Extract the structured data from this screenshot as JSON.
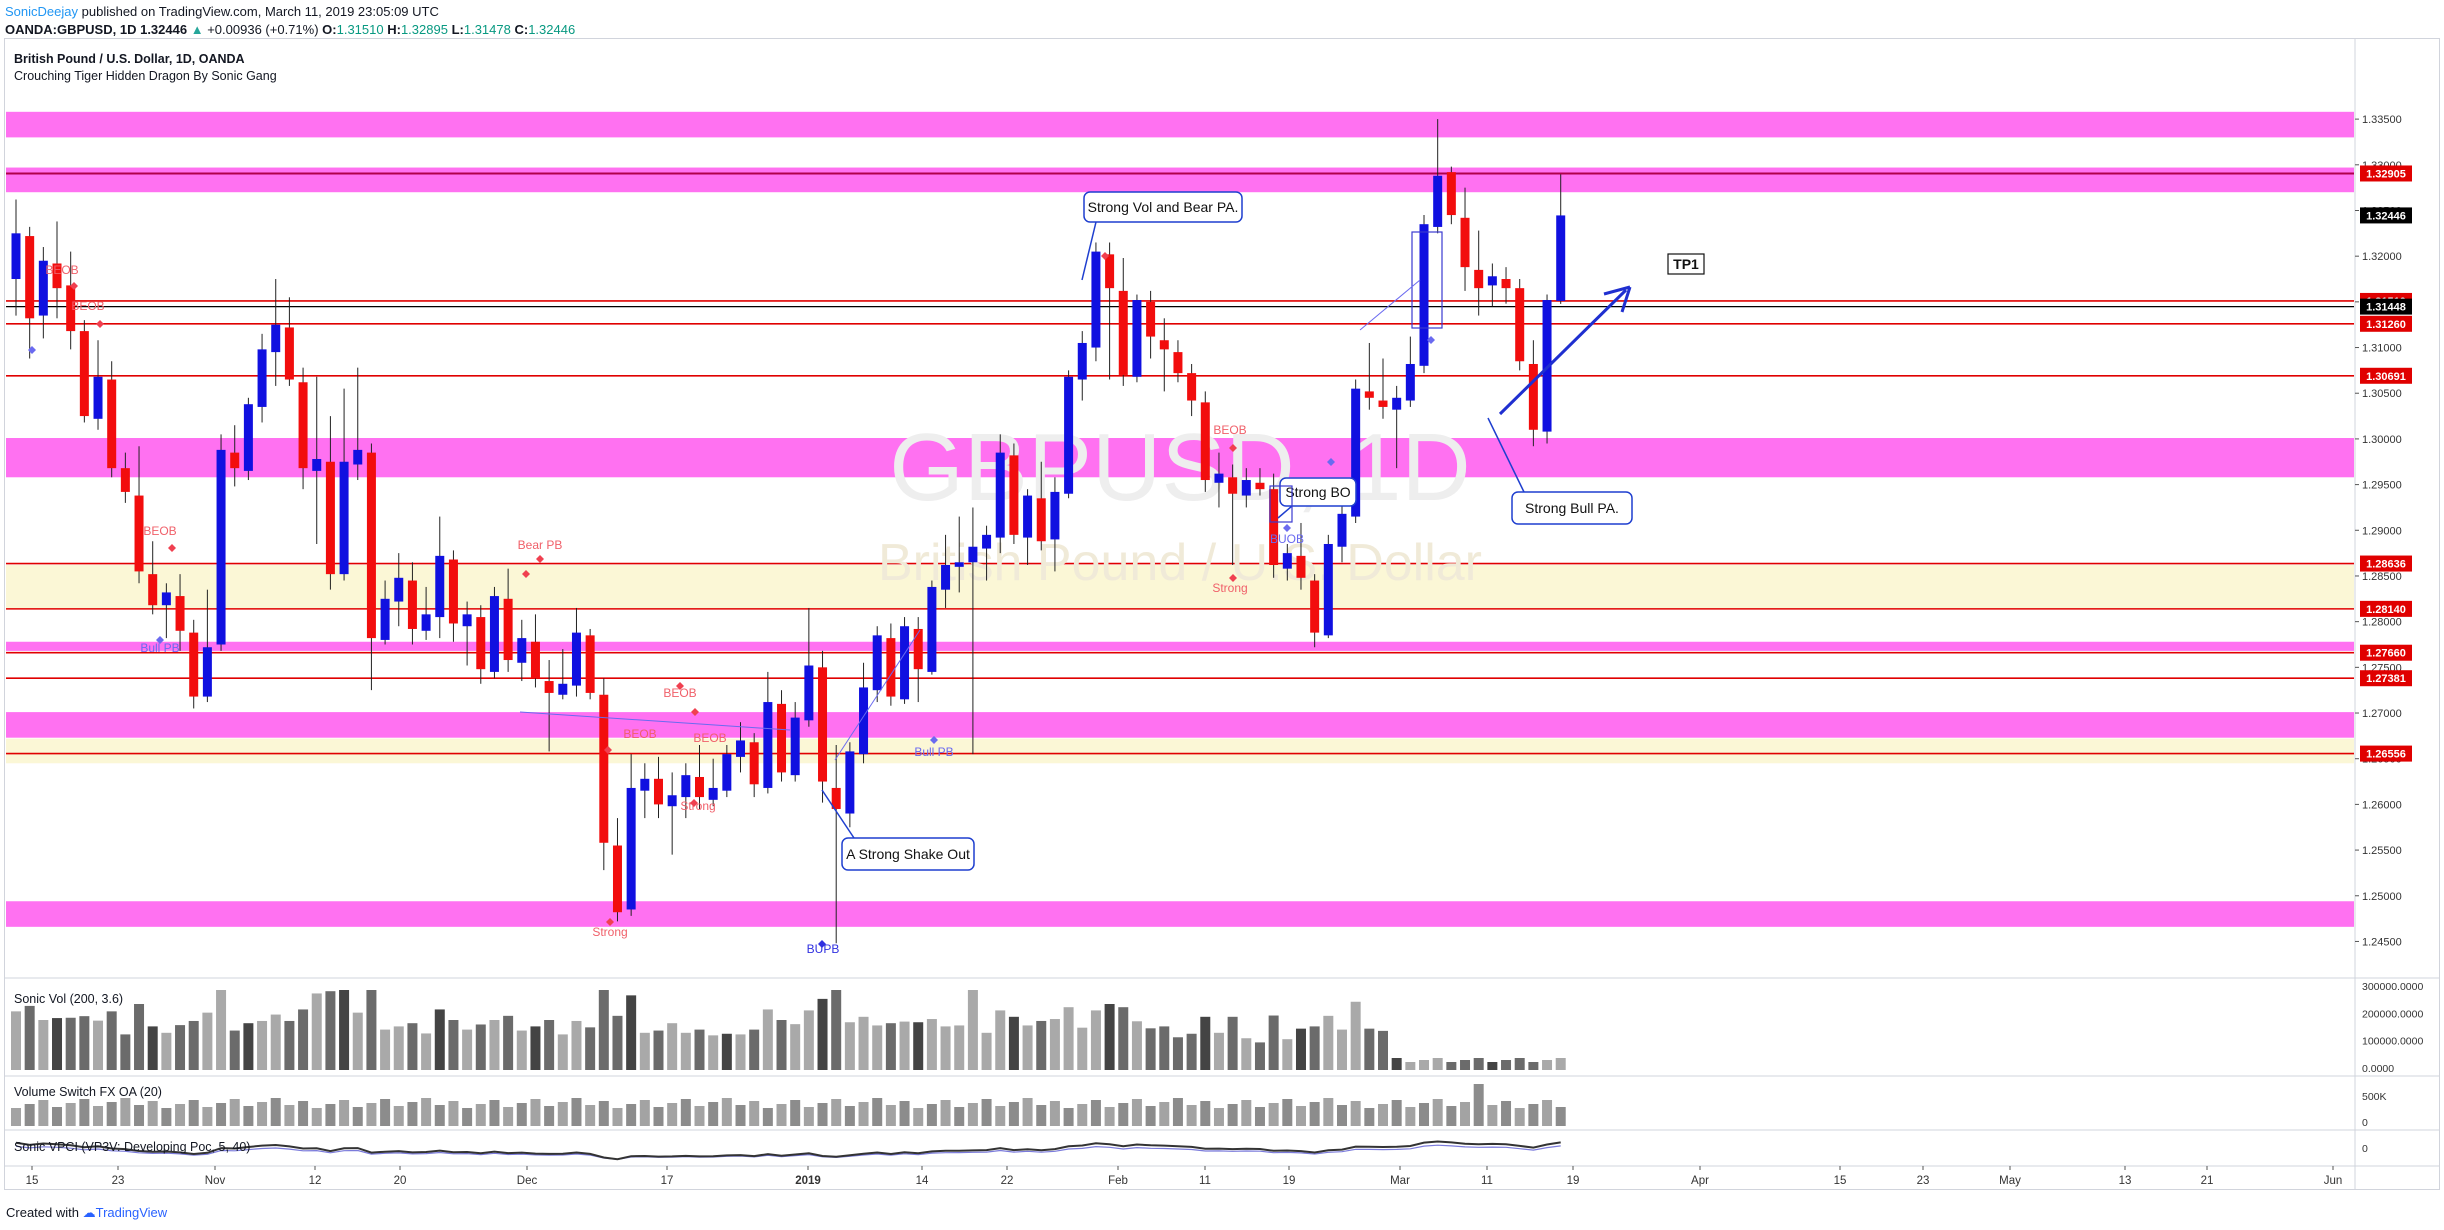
{
  "header": {
    "user": "SonicDeejay",
    "published": "published on TradingView.com, March 11, 2019 23:05:09 UTC",
    "symbol": "OANDA:GBPUSD, 1D",
    "last": "1.32446",
    "arrow": "▲",
    "change": "+0.00936 (+0.71%)",
    "ohlc": [
      {
        "label": "O:",
        "value": "1.31510"
      },
      {
        "label": "H:",
        "value": "1.32895"
      },
      {
        "label": "L:",
        "value": "1.31478"
      },
      {
        "label": "C:",
        "value": "1.32446"
      }
    ]
  },
  "chart_title": "British Pound / U.S. Dollar, 1D, OANDA",
  "indicator_name": "Crouching Tiger Hidden Dragon By Sonic Gang",
  "watermark": {
    "symbol": "GBPUSD, 1D",
    "name": "British Pound / U.S. Dollar"
  },
  "panes": {
    "volume_title": "Sonic Vol (200, 3.6)",
    "volume_ticks": [
      "300000.0000",
      "200000.0000",
      "100000.0000",
      "0.0000"
    ],
    "switch_title": "Volume Switch FX OA (20)",
    "switch_ticks": [
      "500K",
      "0"
    ],
    "vpci_title": "Sonic VPCI (VP3V: Developing Poc, 5, 40)",
    "vpci_ticks": [
      "0"
    ]
  },
  "footer": {
    "created_with": "Created with",
    "brand": "TradingView"
  },
  "colors": {
    "bull": "#1010e0",
    "bear": "#f20d0d",
    "zone_magenta": "#ff69f0",
    "zone_yellow": "#fbf7d6",
    "level_red": "#e00000"
  },
  "chart_data": {
    "type": "candlestick",
    "price_axis": {
      "min": 1.241,
      "max": 1.3395,
      "ticks": [
        "1.33500",
        "1.33000",
        "1.32500",
        "1.32000",
        "1.31500",
        "1.31000",
        "1.30500",
        "1.30000",
        "1.29500",
        "1.29000",
        "1.28500",
        "1.28000",
        "1.27500",
        "1.27000",
        "1.26500",
        "1.26000",
        "1.25500",
        "1.25000",
        "1.24500"
      ]
    },
    "time_axis": [
      "15",
      "23",
      "Nov",
      "12",
      "20",
      "Dec",
      "17",
      "2019",
      "14",
      "22",
      "Feb",
      "11",
      "19",
      "Mar",
      "11",
      "19",
      "Apr",
      "15",
      "23",
      "May",
      "13",
      "21",
      "Jun"
    ],
    "price_labels": [
      {
        "text": "1.32905",
        "color": "#e00000",
        "price": 1.32905
      },
      {
        "text": "1.32446",
        "color": "#000000",
        "price": 1.32446
      },
      {
        "text": "1.31510",
        "color": "#e00000",
        "price": 1.3151
      },
      {
        "text": "1.31448",
        "color": "#000000",
        "price": 1.31448
      },
      {
        "text": "1.31260",
        "color": "#e00000",
        "price": 1.3126
      },
      {
        "text": "1.30691",
        "color": "#e00000",
        "price": 1.30691
      },
      {
        "text": "1.28636",
        "color": "#e00000",
        "price": 1.28636
      },
      {
        "text": "1.28140",
        "color": "#e00000",
        "price": 1.2814
      },
      {
        "text": "1.27660",
        "color": "#e00000",
        "price": 1.2766
      },
      {
        "text": "1.27381",
        "color": "#e00000",
        "price": 1.27381
      },
      {
        "text": "1.26556",
        "color": "#e00000",
        "price": 1.26556
      }
    ],
    "zones": [
      {
        "type": "magenta",
        "from": 1.333,
        "to": 1.3358
      },
      {
        "type": "magenta",
        "from": 1.327,
        "to": 1.3297
      },
      {
        "type": "magenta",
        "from": 1.2958,
        "to": 1.3001
      },
      {
        "type": "yellow",
        "from": 1.2814,
        "to": 1.2862
      },
      {
        "type": "magenta",
        "from": 1.2768,
        "to": 1.2778
      },
      {
        "type": "magenta",
        "from": 1.2673,
        "to": 1.2701
      },
      {
        "type": "yellow",
        "from": 1.2645,
        "to": 1.2672
      },
      {
        "type": "magenta",
        "from": 1.2466,
        "to": 1.2494
      }
    ],
    "levels": [
      1.32905,
      1.3151,
      1.3126,
      1.30691,
      1.28636,
      1.2814,
      1.2766,
      1.27381,
      1.26556
    ],
    "candles": [
      {
        "o": 1.3175,
        "h": 1.3262,
        "l": 1.3135,
        "c": 1.3225
      },
      {
        "o": 1.3222,
        "h": 1.3232,
        "l": 1.3088,
        "c": 1.3132
      },
      {
        "o": 1.3135,
        "h": 1.321,
        "l": 1.311,
        "c": 1.3195
      },
      {
        "o": 1.3192,
        "h": 1.3238,
        "l": 1.3132,
        "c": 1.3165
      },
      {
        "o": 1.3168,
        "h": 1.3205,
        "l": 1.3098,
        "c": 1.3118
      },
      {
        "o": 1.3118,
        "h": 1.313,
        "l": 1.3018,
        "c": 1.3025
      },
      {
        "o": 1.3022,
        "h": 1.3108,
        "l": 1.301,
        "c": 1.3068
      },
      {
        "o": 1.3065,
        "h": 1.3085,
        "l": 1.2958,
        "c": 1.2968
      },
      {
        "o": 1.2968,
        "h": 1.2985,
        "l": 1.293,
        "c": 1.2942
      },
      {
        "o": 1.2938,
        "h": 1.2992,
        "l": 1.2842,
        "c": 1.2855
      },
      {
        "o": 1.2852,
        "h": 1.2888,
        "l": 1.2808,
        "c": 1.2818
      },
      {
        "o": 1.2818,
        "h": 1.2842,
        "l": 1.2782,
        "c": 1.2832
      },
      {
        "o": 1.2828,
        "h": 1.2852,
        "l": 1.2768,
        "c": 1.279
      },
      {
        "o": 1.2788,
        "h": 1.2802,
        "l": 1.2705,
        "c": 1.2718
      },
      {
        "o": 1.2718,
        "h": 1.2835,
        "l": 1.2712,
        "c": 1.2772
      },
      {
        "o": 1.2775,
        "h": 1.3005,
        "l": 1.2768,
        "c": 1.2988
      },
      {
        "o": 1.2985,
        "h": 1.3015,
        "l": 1.2948,
        "c": 1.2968
      },
      {
        "o": 1.2965,
        "h": 1.3045,
        "l": 1.2955,
        "c": 1.3038
      },
      {
        "o": 1.3035,
        "h": 1.3115,
        "l": 1.3018,
        "c": 1.3098
      },
      {
        "o": 1.3095,
        "h": 1.3175,
        "l": 1.3058,
        "c": 1.3125
      },
      {
        "o": 1.3122,
        "h": 1.3155,
        "l": 1.3058,
        "c": 1.3065
      },
      {
        "o": 1.3062,
        "h": 1.3078,
        "l": 1.2945,
        "c": 1.2968
      },
      {
        "o": 1.2965,
        "h": 1.3068,
        "l": 1.2885,
        "c": 1.2978
      },
      {
        "o": 1.2975,
        "h": 1.3025,
        "l": 1.2835,
        "c": 1.2852
      },
      {
        "o": 1.2852,
        "h": 1.3055,
        "l": 1.2845,
        "c": 1.2975
      },
      {
        "o": 1.2972,
        "h": 1.3078,
        "l": 1.2955,
        "c": 1.2988
      },
      {
        "o": 1.2985,
        "h": 1.2995,
        "l": 1.2725,
        "c": 1.2782
      },
      {
        "o": 1.278,
        "h": 1.2845,
        "l": 1.2775,
        "c": 1.2825
      },
      {
        "o": 1.2822,
        "h": 1.2875,
        "l": 1.2795,
        "c": 1.2848
      },
      {
        "o": 1.2845,
        "h": 1.2865,
        "l": 1.2775,
        "c": 1.2792
      },
      {
        "o": 1.279,
        "h": 1.2838,
        "l": 1.278,
        "c": 1.2808
      },
      {
        "o": 1.2805,
        "h": 1.2915,
        "l": 1.2782,
        "c": 1.2872
      },
      {
        "o": 1.2868,
        "h": 1.2878,
        "l": 1.2778,
        "c": 1.2798
      },
      {
        "o": 1.2795,
        "h": 1.2822,
        "l": 1.2752,
        "c": 1.2808
      },
      {
        "o": 1.2805,
        "h": 1.2818,
        "l": 1.2732,
        "c": 1.2748
      },
      {
        "o": 1.2745,
        "h": 1.2838,
        "l": 1.2738,
        "c": 1.2828
      },
      {
        "o": 1.2825,
        "h": 1.2858,
        "l": 1.2745,
        "c": 1.2758
      },
      {
        "o": 1.2755,
        "h": 1.2802,
        "l": 1.2735,
        "c": 1.2782
      },
      {
        "o": 1.2778,
        "h": 1.2808,
        "l": 1.2728,
        "c": 1.2738
      },
      {
        "o": 1.2735,
        "h": 1.2758,
        "l": 1.2658,
        "c": 1.2722
      },
      {
        "o": 1.272,
        "h": 1.277,
        "l": 1.2715,
        "c": 1.2732
      },
      {
        "o": 1.273,
        "h": 1.2815,
        "l": 1.2718,
        "c": 1.2788
      },
      {
        "o": 1.2785,
        "h": 1.2792,
        "l": 1.2715,
        "c": 1.2722
      },
      {
        "o": 1.272,
        "h": 1.2738,
        "l": 1.2528,
        "c": 1.2558
      },
      {
        "o": 1.2555,
        "h": 1.2585,
        "l": 1.2472,
        "c": 1.2482
      },
      {
        "o": 1.2485,
        "h": 1.2655,
        "l": 1.2478,
        "c": 1.2618
      },
      {
        "o": 1.2615,
        "h": 1.2645,
        "l": 1.2585,
        "c": 1.2628
      },
      {
        "o": 1.2628,
        "h": 1.2652,
        "l": 1.2585,
        "c": 1.26
      },
      {
        "o": 1.2598,
        "h": 1.2635,
        "l": 1.2545,
        "c": 1.261
      },
      {
        "o": 1.2608,
        "h": 1.2645,
        "l": 1.2585,
        "c": 1.2632
      },
      {
        "o": 1.263,
        "h": 1.2665,
        "l": 1.2595,
        "c": 1.2608
      },
      {
        "o": 1.2605,
        "h": 1.265,
        "l": 1.2598,
        "c": 1.2618
      },
      {
        "o": 1.2615,
        "h": 1.2665,
        "l": 1.2608,
        "c": 1.2655
      },
      {
        "o": 1.2652,
        "h": 1.269,
        "l": 1.2635,
        "c": 1.267
      },
      {
        "o": 1.2668,
        "h": 1.2678,
        "l": 1.2608,
        "c": 1.2622
      },
      {
        "o": 1.2618,
        "h": 1.2745,
        "l": 1.2612,
        "c": 1.2712
      },
      {
        "o": 1.271,
        "h": 1.2725,
        "l": 1.2625,
        "c": 1.2635
      },
      {
        "o": 1.2632,
        "h": 1.2712,
        "l": 1.2625,
        "c": 1.2695
      },
      {
        "o": 1.2692,
        "h": 1.2815,
        "l": 1.2685,
        "c": 1.2752
      },
      {
        "o": 1.275,
        "h": 1.2768,
        "l": 1.2602,
        "c": 1.2625
      },
      {
        "o": 1.2618,
        "h": 1.2665,
        "l": 1.2448,
        "c": 1.2595
      },
      {
        "o": 1.259,
        "h": 1.2668,
        "l": 1.2575,
        "c": 1.2658
      },
      {
        "o": 1.2655,
        "h": 1.2755,
        "l": 1.2645,
        "c": 1.2728
      },
      {
        "o": 1.2725,
        "h": 1.2795,
        "l": 1.2712,
        "c": 1.2785
      },
      {
        "o": 1.2782,
        "h": 1.2798,
        "l": 1.2708,
        "c": 1.2718
      },
      {
        "o": 1.2715,
        "h": 1.2805,
        "l": 1.271,
        "c": 1.2795
      },
      {
        "o": 1.2792,
        "h": 1.2805,
        "l": 1.2712,
        "c": 1.2748
      },
      {
        "o": 1.2745,
        "h": 1.2845,
        "l": 1.2742,
        "c": 1.2838
      },
      {
        "o": 1.2835,
        "h": 1.2895,
        "l": 1.2815,
        "c": 1.2862
      },
      {
        "o": 1.286,
        "h": 1.2915,
        "l": 1.2832,
        "c": 1.2865
      },
      {
        "o": 1.2865,
        "h": 1.2925,
        "l": 1.2655,
        "c": 1.2882
      },
      {
        "o": 1.288,
        "h": 1.2905,
        "l": 1.2845,
        "c": 1.2895
      },
      {
        "o": 1.2892,
        "h": 1.3005,
        "l": 1.2875,
        "c": 1.2985
      },
      {
        "o": 1.2982,
        "h": 1.2995,
        "l": 1.2885,
        "c": 1.2895
      },
      {
        "o": 1.2892,
        "h": 1.2945,
        "l": 1.2862,
        "c": 1.2938
      },
      {
        "o": 1.2935,
        "h": 1.2975,
        "l": 1.2878,
        "c": 1.2888
      },
      {
        "o": 1.289,
        "h": 1.2958,
        "l": 1.2855,
        "c": 1.2942
      },
      {
        "o": 1.294,
        "h": 1.3075,
        "l": 1.2935,
        "c": 1.3068
      },
      {
        "o": 1.3065,
        "h": 1.3118,
        "l": 1.3042,
        "c": 1.3105
      },
      {
        "o": 1.31,
        "h": 1.3215,
        "l": 1.3085,
        "c": 1.3205
      },
      {
        "o": 1.3202,
        "h": 1.3215,
        "l": 1.3065,
        "c": 1.3165
      },
      {
        "o": 1.3162,
        "h": 1.3198,
        "l": 1.3058,
        "c": 1.307
      },
      {
        "o": 1.3068,
        "h": 1.3158,
        "l": 1.3062,
        "c": 1.3152
      },
      {
        "o": 1.315,
        "h": 1.3162,
        "l": 1.3088,
        "c": 1.3112
      },
      {
        "o": 1.3108,
        "h": 1.3132,
        "l": 1.3052,
        "c": 1.3098
      },
      {
        "o": 1.3095,
        "h": 1.3108,
        "l": 1.3062,
        "c": 1.3072
      },
      {
        "o": 1.3072,
        "h": 1.3082,
        "l": 1.3025,
        "c": 1.3042
      },
      {
        "o": 1.304,
        "h": 1.3052,
        "l": 1.2942,
        "c": 1.2955
      },
      {
        "o": 1.2952,
        "h": 1.2985,
        "l": 1.2925,
        "c": 1.2962
      },
      {
        "o": 1.2958,
        "h": 1.2972,
        "l": 1.2862,
        "c": 1.294
      },
      {
        "o": 1.2938,
        "h": 1.2968,
        "l": 1.2925,
        "c": 1.2955
      },
      {
        "o": 1.2952,
        "h": 1.2968,
        "l": 1.2938,
        "c": 1.2945
      },
      {
        "o": 1.2945,
        "h": 1.2962,
        "l": 1.2848,
        "c": 1.2862
      },
      {
        "o": 1.2858,
        "h": 1.2885,
        "l": 1.2845,
        "c": 1.2875
      },
      {
        "o": 1.2872,
        "h": 1.2908,
        "l": 1.2835,
        "c": 1.2848
      },
      {
        "o": 1.2845,
        "h": 1.2852,
        "l": 1.2772,
        "c": 1.2788
      },
      {
        "o": 1.2785,
        "h": 1.2895,
        "l": 1.2782,
        "c": 1.2885
      },
      {
        "o": 1.2882,
        "h": 1.2935,
        "l": 1.2865,
        "c": 1.2918
      },
      {
        "o": 1.2915,
        "h": 1.3065,
        "l": 1.2908,
        "c": 1.3055
      },
      {
        "o": 1.3052,
        "h": 1.3105,
        "l": 1.3032,
        "c": 1.3045
      },
      {
        "o": 1.3042,
        "h": 1.3088,
        "l": 1.3022,
        "c": 1.3035
      },
      {
        "o": 1.3032,
        "h": 1.3058,
        "l": 1.2968,
        "c": 1.3045
      },
      {
        "o": 1.3042,
        "h": 1.3112,
        "l": 1.3035,
        "c": 1.3082
      },
      {
        "o": 1.308,
        "h": 1.3245,
        "l": 1.3072,
        "c": 1.3235
      },
      {
        "o": 1.3232,
        "h": 1.335,
        "l": 1.3225,
        "c": 1.3288
      },
      {
        "o": 1.3292,
        "h": 1.3298,
        "l": 1.3235,
        "c": 1.3245
      },
      {
        "o": 1.3242,
        "h": 1.3275,
        "l": 1.3162,
        "c": 1.3188
      },
      {
        "o": 1.3185,
        "h": 1.3228,
        "l": 1.3135,
        "c": 1.3165
      },
      {
        "o": 1.3168,
        "h": 1.3192,
        "l": 1.3145,
        "c": 1.3178
      },
      {
        "o": 1.3175,
        "h": 1.3188,
        "l": 1.3148,
        "c": 1.3165
      },
      {
        "o": 1.3165,
        "h": 1.3175,
        "l": 1.3075,
        "c": 1.3085
      },
      {
        "o": 1.3082,
        "h": 1.3108,
        "l": 1.2992,
        "c": 1.301
      },
      {
        "o": 1.3008,
        "h": 1.3158,
        "l": 1.2995,
        "c": 1.3152
      },
      {
        "o": 1.3151,
        "h": 1.32895,
        "l": 1.31478,
        "c": 1.32446
      }
    ],
    "annotations": [
      {
        "text": "Strong Vol and Bear PA.",
        "kind": "callout"
      },
      {
        "text": "Strong BO",
        "kind": "callout"
      },
      {
        "text": "Strong Bull PA.",
        "kind": "callout"
      },
      {
        "text": "A Strong Shake Out",
        "kind": "callout"
      },
      {
        "text": "TP1",
        "kind": "box"
      }
    ],
    "signals": [
      {
        "text": "BEOB",
        "color": "#f0606a"
      },
      {
        "text": "BEOB",
        "color": "#f0606a"
      },
      {
        "text": "BEOB",
        "color": "#f0606a"
      },
      {
        "text": "Bull PB",
        "color": "#6a6af0"
      },
      {
        "text": "Bear PB",
        "color": "#f0606a"
      },
      {
        "text": "BEOB",
        "color": "#f0606a"
      },
      {
        "text": "BEOB",
        "color": "#f0606a"
      },
      {
        "text": "BEOB",
        "color": "#f0606a"
      },
      {
        "text": "Strong",
        "color": "#f0606a"
      },
      {
        "text": "Strong",
        "color": "#f0606a"
      },
      {
        "text": "BUPB",
        "color": "#3030e0"
      },
      {
        "text": "Bull PB",
        "color": "#6a6af0"
      },
      {
        "text": "BEOB",
        "color": "#f0606a"
      },
      {
        "text": "BUOB",
        "color": "#6a6af0"
      },
      {
        "text": "Strong",
        "color": "#f0606a"
      }
    ]
  }
}
